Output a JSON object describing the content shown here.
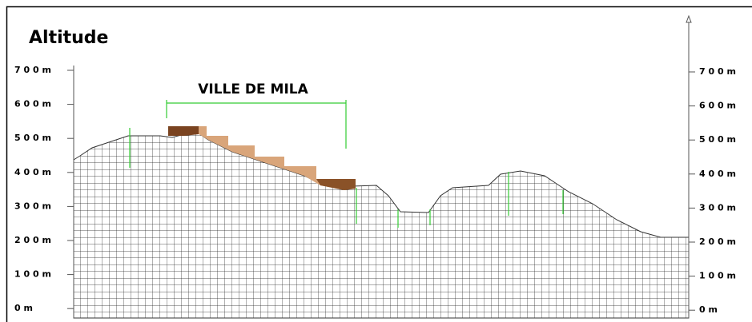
{
  "title": "Altitude",
  "left_axis": {
    "labels": [
      "7 0 0 m",
      "6 0 0 m",
      "5 0 0 m",
      "4 0 0 m",
      "3 0 0 m",
      "2 0 0 m",
      "1 0 0 m",
      "0 m"
    ]
  },
  "right_axis": {
    "labels": [
      "7 0 0 m",
      "6 0 0 m",
      "5 0 0 m",
      "4 0 0 m",
      "3 0 0 m",
      "2 0 0 m",
      "1 0 0 m",
      "0 m"
    ]
  },
  "annotation": "VILLE DE MILA"
}
